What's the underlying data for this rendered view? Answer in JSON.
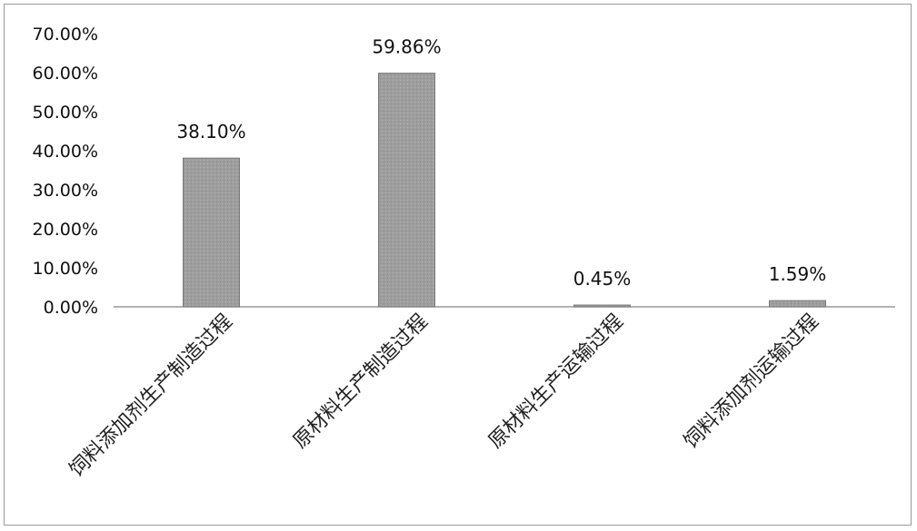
{
  "chart_data": {
    "type": "bar",
    "title": "",
    "xlabel": "",
    "ylabel": "",
    "categories": [
      "饲料添加剂生产制造过程",
      "原材料生产制造过程",
      "原材料生产运输过程",
      "饲料添加剂运输过程"
    ],
    "values": [
      38.1,
      59.86,
      0.45,
      1.59
    ],
    "data_labels": [
      "38.10%",
      "59.86%",
      "0.45%",
      "1.59%"
    ],
    "y_ticks": [
      0,
      10,
      20,
      30,
      40,
      50,
      60,
      70
    ],
    "y_tick_labels": [
      "0.00%",
      "10.00%",
      "20.00%",
      "30.00%",
      "40.00%",
      "50.00%",
      "60.00%",
      "70.00%"
    ],
    "ylim": [
      0,
      70
    ],
    "grid": false,
    "legend": "none",
    "bar_color": "#9e9e9e",
    "bar_edge_color": "#7a7a7a"
  }
}
